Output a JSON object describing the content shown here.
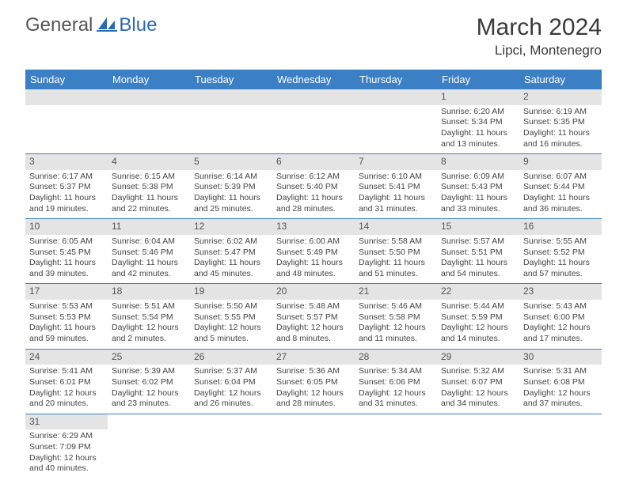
{
  "logo": {
    "text1": "General",
    "text2": "Blue"
  },
  "title": "March 2024",
  "location": "Lipci, Montenegro",
  "colors": {
    "header_bg": "#3b7fc4",
    "header_fg": "#ffffff",
    "num_bg": "#e4e4e4",
    "row_border": "#3b7fc4",
    "text": "#444444",
    "title_color": "#3a3a3a",
    "logo_gray": "#555555",
    "logo_blue": "#2a6ab0"
  },
  "day_names": [
    "Sunday",
    "Monday",
    "Tuesday",
    "Wednesday",
    "Thursday",
    "Friday",
    "Saturday"
  ],
  "weeks": [
    [
      null,
      null,
      null,
      null,
      null,
      {
        "n": "1",
        "sr": "6:20 AM",
        "ss": "5:34 PM",
        "dl": "11 hours and 13 minutes."
      },
      {
        "n": "2",
        "sr": "6:19 AM",
        "ss": "5:35 PM",
        "dl": "11 hours and 16 minutes."
      }
    ],
    [
      {
        "n": "3",
        "sr": "6:17 AM",
        "ss": "5:37 PM",
        "dl": "11 hours and 19 minutes."
      },
      {
        "n": "4",
        "sr": "6:15 AM",
        "ss": "5:38 PM",
        "dl": "11 hours and 22 minutes."
      },
      {
        "n": "5",
        "sr": "6:14 AM",
        "ss": "5:39 PM",
        "dl": "11 hours and 25 minutes."
      },
      {
        "n": "6",
        "sr": "6:12 AM",
        "ss": "5:40 PM",
        "dl": "11 hours and 28 minutes."
      },
      {
        "n": "7",
        "sr": "6:10 AM",
        "ss": "5:41 PM",
        "dl": "11 hours and 31 minutes."
      },
      {
        "n": "8",
        "sr": "6:09 AM",
        "ss": "5:43 PM",
        "dl": "11 hours and 33 minutes."
      },
      {
        "n": "9",
        "sr": "6:07 AM",
        "ss": "5:44 PM",
        "dl": "11 hours and 36 minutes."
      }
    ],
    [
      {
        "n": "10",
        "sr": "6:05 AM",
        "ss": "5:45 PM",
        "dl": "11 hours and 39 minutes."
      },
      {
        "n": "11",
        "sr": "6:04 AM",
        "ss": "5:46 PM",
        "dl": "11 hours and 42 minutes."
      },
      {
        "n": "12",
        "sr": "6:02 AM",
        "ss": "5:47 PM",
        "dl": "11 hours and 45 minutes."
      },
      {
        "n": "13",
        "sr": "6:00 AM",
        "ss": "5:49 PM",
        "dl": "11 hours and 48 minutes."
      },
      {
        "n": "14",
        "sr": "5:58 AM",
        "ss": "5:50 PM",
        "dl": "11 hours and 51 minutes."
      },
      {
        "n": "15",
        "sr": "5:57 AM",
        "ss": "5:51 PM",
        "dl": "11 hours and 54 minutes."
      },
      {
        "n": "16",
        "sr": "5:55 AM",
        "ss": "5:52 PM",
        "dl": "11 hours and 57 minutes."
      }
    ],
    [
      {
        "n": "17",
        "sr": "5:53 AM",
        "ss": "5:53 PM",
        "dl": "11 hours and 59 minutes."
      },
      {
        "n": "18",
        "sr": "5:51 AM",
        "ss": "5:54 PM",
        "dl": "12 hours and 2 minutes."
      },
      {
        "n": "19",
        "sr": "5:50 AM",
        "ss": "5:55 PM",
        "dl": "12 hours and 5 minutes."
      },
      {
        "n": "20",
        "sr": "5:48 AM",
        "ss": "5:57 PM",
        "dl": "12 hours and 8 minutes."
      },
      {
        "n": "21",
        "sr": "5:46 AM",
        "ss": "5:58 PM",
        "dl": "12 hours and 11 minutes."
      },
      {
        "n": "22",
        "sr": "5:44 AM",
        "ss": "5:59 PM",
        "dl": "12 hours and 14 minutes."
      },
      {
        "n": "23",
        "sr": "5:43 AM",
        "ss": "6:00 PM",
        "dl": "12 hours and 17 minutes."
      }
    ],
    [
      {
        "n": "24",
        "sr": "5:41 AM",
        "ss": "6:01 PM",
        "dl": "12 hours and 20 minutes."
      },
      {
        "n": "25",
        "sr": "5:39 AM",
        "ss": "6:02 PM",
        "dl": "12 hours and 23 minutes."
      },
      {
        "n": "26",
        "sr": "5:37 AM",
        "ss": "6:04 PM",
        "dl": "12 hours and 26 minutes."
      },
      {
        "n": "27",
        "sr": "5:36 AM",
        "ss": "6:05 PM",
        "dl": "12 hours and 28 minutes."
      },
      {
        "n": "28",
        "sr": "5:34 AM",
        "ss": "6:06 PM",
        "dl": "12 hours and 31 minutes."
      },
      {
        "n": "29",
        "sr": "5:32 AM",
        "ss": "6:07 PM",
        "dl": "12 hours and 34 minutes."
      },
      {
        "n": "30",
        "sr": "5:31 AM",
        "ss": "6:08 PM",
        "dl": "12 hours and 37 minutes."
      }
    ],
    [
      {
        "n": "31",
        "sr": "6:29 AM",
        "ss": "7:09 PM",
        "dl": "12 hours and 40 minutes."
      },
      null,
      null,
      null,
      null,
      null,
      null
    ]
  ],
  "labels": {
    "sunrise": "Sunrise:",
    "sunset": "Sunset:",
    "daylight": "Daylight:"
  }
}
